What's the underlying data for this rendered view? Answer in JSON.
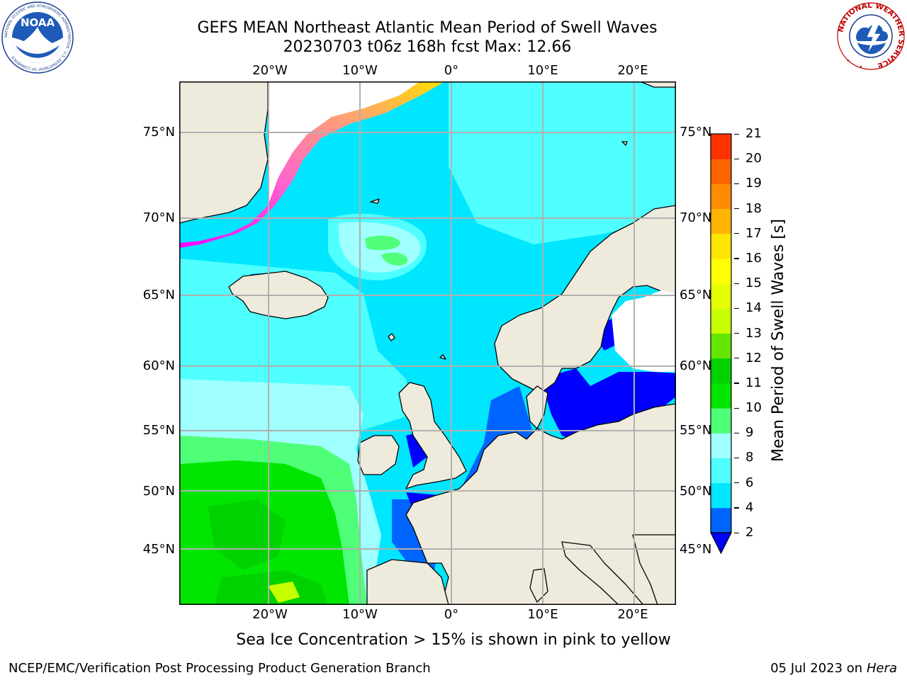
{
  "header": {
    "title_line1": "GEFS MEAN Northeast Atlantic Mean Period of Swell Waves",
    "title_line2": "20230703 t06z 168h fcst   Max: 12.66"
  },
  "logos": {
    "noaa_text": "NOAA",
    "noaa_ring_text": "NATIONAL OCEANIC AND ATMOSPHERIC ADMINISTRATION · U.S. DEPARTMENT OF COMMERCE",
    "nws_ring_text": "NATIONAL WEATHER SERVICE"
  },
  "map": {
    "lon_labels_top": [
      "20°W",
      "10°W",
      "0°",
      "10°E",
      "20°E"
    ],
    "lon_labels_bottom": [
      "20°W",
      "10°W",
      "0°",
      "10°E",
      "20°E"
    ],
    "lat_labels_left": [
      "75°N",
      "70°N",
      "65°N",
      "60°N",
      "55°N",
      "50°N",
      "45°N"
    ],
    "lat_labels_right": [
      "75°N",
      "70°N",
      "65°N",
      "60°N",
      "55°N",
      "50°N",
      "45°N"
    ],
    "colors": {
      "land": "#eeebdd",
      "ice": "#ffffff",
      "ice_gradient": [
        "#ff00ff",
        "#ff66cc",
        "#ffaa66",
        "#ffdd00"
      ]
    }
  },
  "colorbar": {
    "label": "Mean Period of Swell Waves [s]",
    "ticks": [
      "2",
      "4",
      "6",
      "8",
      "9",
      "10",
      "11",
      "12",
      "13",
      "14",
      "15",
      "16",
      "17",
      "18",
      "19",
      "20",
      "21"
    ],
    "colors": [
      "#0064ff",
      "#00e6ff",
      "#50ffff",
      "#a0ffff",
      "#50ff78",
      "#00e600",
      "#00d200",
      "#64e600",
      "#c8ff00",
      "#e6ff00",
      "#ffff00",
      "#ffe600",
      "#ffb400",
      "#ff8c00",
      "#ff6400",
      "#ff3200",
      "#ff0000"
    ],
    "underflow_color": "#0000ff"
  },
  "notes": {
    "sea_ice": "Sea Ice Concentration > 15% is shown in pink to yellow"
  },
  "footer": {
    "left": "NCEP/EMC/Verification Post Processing Product Generation Branch",
    "right_date": "05 Jul 2023 on ",
    "right_host": "Hera"
  }
}
